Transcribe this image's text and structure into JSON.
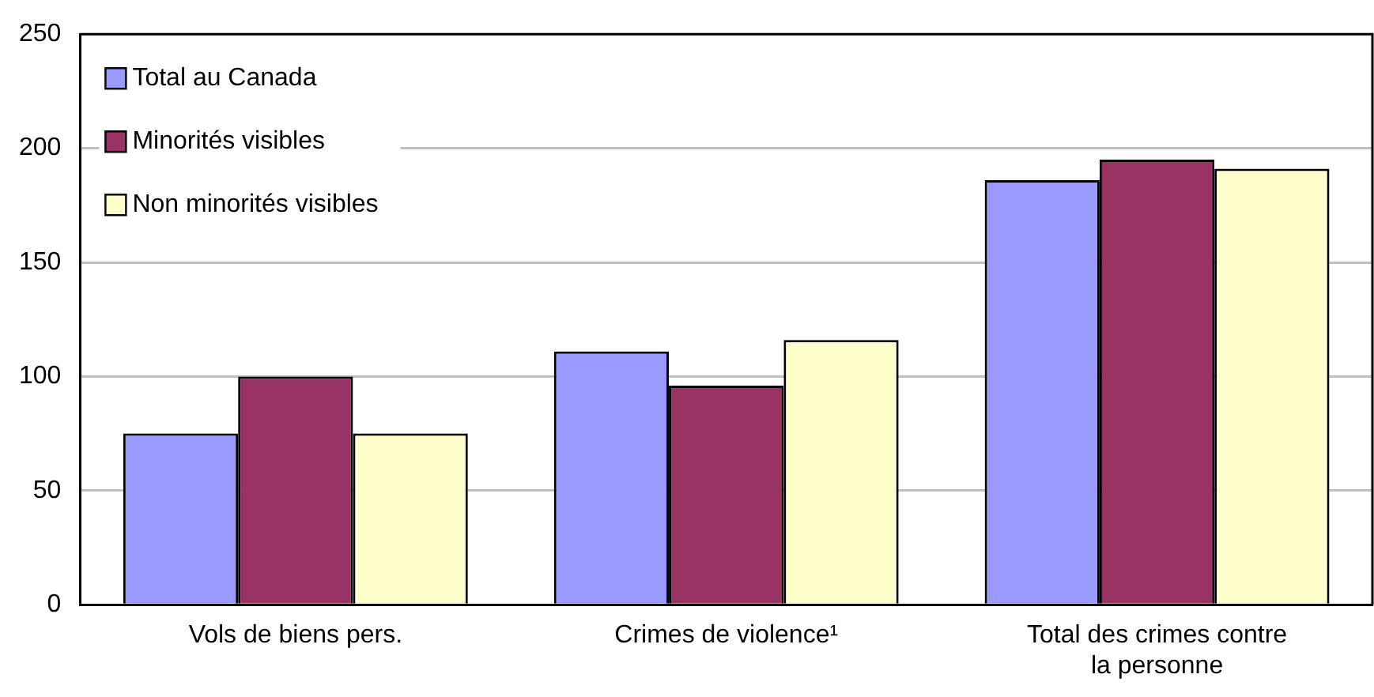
{
  "chart_data": {
    "type": "bar",
    "categories": [
      "Vols de biens pers.",
      "Crimes de violence¹",
      "Total des crimes contre la personne"
    ],
    "series": [
      {
        "name": "Total au Canada",
        "color": "#9999ff",
        "values": [
          75,
          111,
          186
        ]
      },
      {
        "name": "Minorités visibles",
        "color": "#993366",
        "values": [
          100,
          96,
          195
        ]
      },
      {
        "name": "Non minorités visibles",
        "color": "#ffffcc",
        "values": [
          75,
          116,
          191
        ]
      }
    ],
    "ylim": [
      0,
      250
    ],
    "yticks": [
      0,
      50,
      100,
      150,
      200,
      250
    ],
    "grid": "y",
    "legend": "top left"
  }
}
